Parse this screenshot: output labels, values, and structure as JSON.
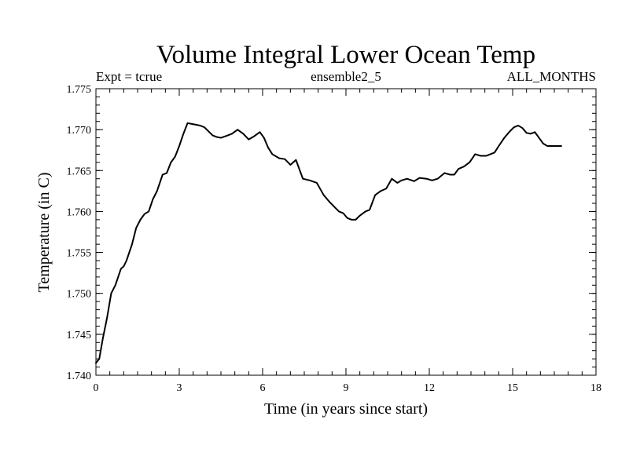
{
  "chart_data": {
    "type": "line",
    "title": "Volume Integral Lower Ocean Temp",
    "subtitle_left": "Expt = tcrue",
    "subtitle_center": "ensemble2_5",
    "subtitle_right": "ALL_MONTHS",
    "xlabel": "Time (in years since start)",
    "ylabel": "Temperature (in C)",
    "xlim": [
      0,
      18
    ],
    "ylim": [
      1.74,
      1.775
    ],
    "xticks": [
      "0",
      "3",
      "6",
      "9",
      "12",
      "15",
      "18"
    ],
    "yticks": [
      "1.740",
      "1.745",
      "1.750",
      "1.755",
      "1.760",
      "1.765",
      "1.770",
      "1.775"
    ],
    "grid": false,
    "series": [
      {
        "name": "Volume Integral Lower Ocean Temp",
        "color": "#000000",
        "x": [
          0.0,
          0.12,
          0.25,
          0.4,
          0.55,
          0.7,
          0.9,
          1.0,
          1.1,
          1.3,
          1.45,
          1.6,
          1.75,
          1.9,
          2.05,
          2.2,
          2.4,
          2.55,
          2.7,
          2.85,
          3.0,
          3.15,
          3.3,
          3.45,
          3.6,
          3.75,
          3.9,
          4.2,
          4.35,
          4.5,
          4.75,
          4.9,
          5.1,
          5.3,
          5.5,
          5.7,
          5.9,
          6.05,
          6.2,
          6.35,
          6.6,
          6.8,
          7.0,
          7.2,
          7.45,
          7.7,
          7.95,
          8.2,
          8.4,
          8.6,
          8.75,
          8.9,
          9.05,
          9.2,
          9.35,
          9.5,
          9.7,
          9.85,
          10.05,
          10.25,
          10.45,
          10.65,
          10.85,
          11.0,
          11.2,
          11.45,
          11.65,
          11.9,
          12.1,
          12.3,
          12.55,
          12.75,
          12.9,
          13.05,
          13.25,
          13.45,
          13.65,
          13.85,
          14.05,
          14.2,
          14.35,
          14.5,
          14.7,
          14.9,
          15.05,
          15.2,
          15.35,
          15.5,
          15.65,
          15.8,
          15.95,
          16.1,
          16.25,
          16.4,
          16.5,
          16.6,
          16.75
        ],
        "values": [
          1.7415,
          1.742,
          1.7445,
          1.747,
          1.75,
          1.751,
          1.753,
          1.7533,
          1.754,
          1.756,
          1.758,
          1.759,
          1.7597,
          1.76,
          1.7615,
          1.7625,
          1.7645,
          1.7647,
          1.766,
          1.7667,
          1.768,
          1.7695,
          1.7708,
          1.7707,
          1.7706,
          1.7705,
          1.7703,
          1.7693,
          1.7691,
          1.769,
          1.7693,
          1.7695,
          1.77,
          1.7695,
          1.7688,
          1.7692,
          1.7697,
          1.769,
          1.7678,
          1.767,
          1.7665,
          1.7664,
          1.7657,
          1.7663,
          1.764,
          1.7638,
          1.7635,
          1.762,
          1.7612,
          1.7605,
          1.76,
          1.7598,
          1.7592,
          1.759,
          1.759,
          1.7595,
          1.76,
          1.7602,
          1.762,
          1.7625,
          1.7628,
          1.764,
          1.7635,
          1.7638,
          1.764,
          1.7637,
          1.7641,
          1.764,
          1.7638,
          1.764,
          1.7647,
          1.7645,
          1.7645,
          1.7652,
          1.7655,
          1.766,
          1.767,
          1.7668,
          1.7668,
          1.767,
          1.7672,
          1.768,
          1.769,
          1.7698,
          1.7703,
          1.7705,
          1.7702,
          1.7696,
          1.7695,
          1.7697,
          1.769,
          1.7683,
          1.768,
          1.768,
          1.768,
          1.768,
          1.768
        ]
      }
    ]
  }
}
